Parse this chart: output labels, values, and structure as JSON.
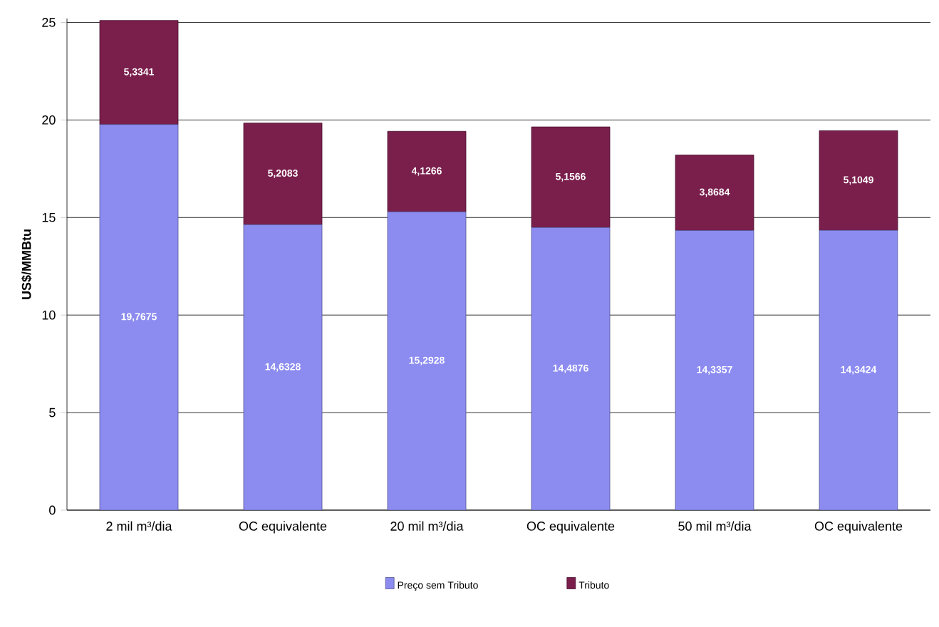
{
  "chart_data": {
    "type": "bar",
    "stacked": true,
    "ylabel": "US$/MMBtu",
    "categories": [
      "2 mil m³/dia",
      "OC equivalente",
      "20 mil m³/dia",
      "OC equivalente",
      "50 mil m³/dia",
      "OC equivalente"
    ],
    "series": [
      {
        "name": "Preço sem Tributo",
        "color": "#8c8cf0",
        "values": [
          19.7675,
          14.6328,
          15.2928,
          14.4876,
          14.3357,
          14.3424
        ],
        "value_labels": [
          "19,7675",
          "14,6328",
          "15,2928",
          "14,4876",
          "14,3357",
          "14,3424"
        ]
      },
      {
        "name": "Tributo",
        "color": "#7a1f4c",
        "values": [
          5.3341,
          5.2083,
          4.1266,
          5.1566,
          3.8684,
          5.1049
        ],
        "value_labels": [
          "5,3341",
          "5,2083",
          "4,1266",
          "5,1566",
          "3,8684",
          "5,1049"
        ]
      }
    ],
    "ylim": [
      0,
      25.2
    ],
    "yticks": [
      0,
      5,
      10,
      15,
      20,
      25
    ],
    "grid": "y",
    "legend": "bottom"
  }
}
